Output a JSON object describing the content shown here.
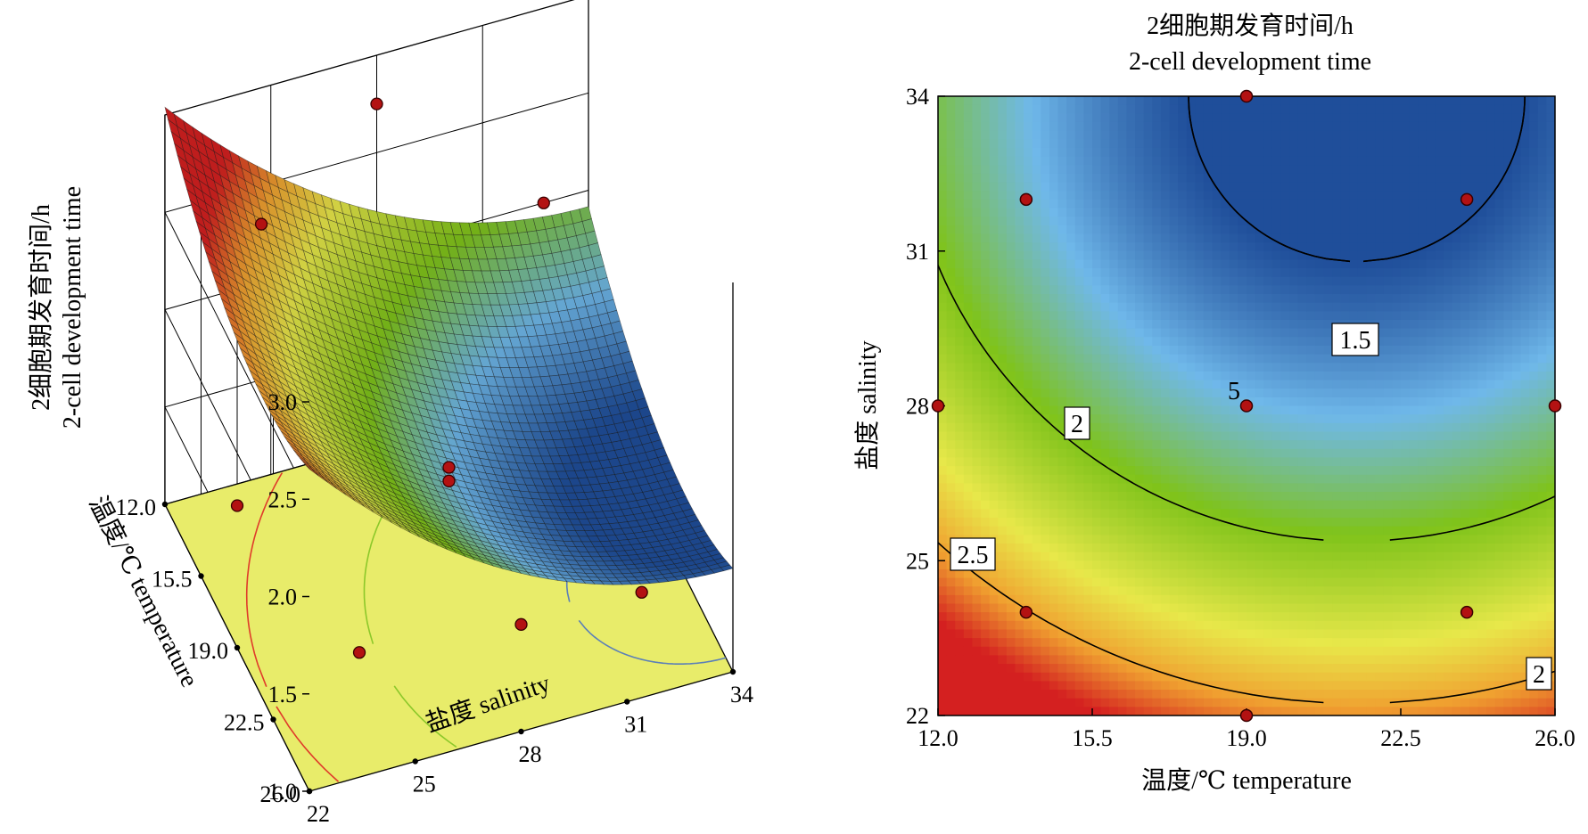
{
  "chart_data": [
    {
      "type": "surface3d",
      "zlabel_line1": "2细胞期发育时间/h",
      "zlabel_line2": "2-cell development time",
      "xlabel": "盐度 salinity",
      "ylabel": "温度/℃ temperature",
      "x_ticks": [
        "22",
        "25",
        "28",
        "31",
        "34"
      ],
      "y_ticks": [
        "12.0",
        "15.5",
        "19.0",
        "22.5",
        "26.0"
      ],
      "z_ticks": [
        "1.0",
        "1.5",
        "2.0",
        "2.5",
        "3.0"
      ],
      "x_range": [
        22,
        34
      ],
      "y_range": [
        12,
        26
      ],
      "z_range": [
        1.0,
        3.0
      ],
      "design_points": [
        {
          "salinity": 22,
          "temperature": 19,
          "value": 1.73,
          "above": true
        },
        {
          "salinity": 34,
          "temperature": 19,
          "value": 1.36,
          "above": false
        },
        {
          "salinity": 28,
          "temperature": 12,
          "value": 2.75,
          "above": true
        },
        {
          "salinity": 28,
          "temperature": 26,
          "value": 1.55,
          "above": true
        },
        {
          "salinity": 24,
          "temperature": 14.5,
          "value": 2.6,
          "above": true
        },
        {
          "salinity": 32,
          "temperature": 14.5,
          "value": 2.3,
          "above": true
        },
        {
          "salinity": 24,
          "temperature": 24,
          "value": 1.4,
          "above": true
        },
        {
          "salinity": 32,
          "temperature": 24,
          "value": 1.3,
          "above": true
        },
        {
          "salinity": 28,
          "temperature": 19,
          "value": 1.62,
          "above": true
        },
        {
          "salinity": 28,
          "temperature": 19,
          "value": 1.55,
          "above": true
        }
      ]
    },
    {
      "type": "contour",
      "title_line1": "2细胞期发育时间/h",
      "title_line2": "2-cell development time",
      "xlabel": "温度/℃ temperature",
      "ylabel": "盐度 salinity",
      "x_ticks": [
        "12.0",
        "15.5",
        "19.0",
        "22.5",
        "26.0"
      ],
      "y_ticks": [
        "22",
        "25",
        "28",
        "31",
        "34"
      ],
      "xlim": [
        12,
        26
      ],
      "ylim": [
        22,
        34
      ],
      "contour_levels": [
        1.5,
        2,
        2.5
      ],
      "contour_labels": [
        "1.5",
        "2",
        "2.5",
        "2"
      ],
      "design_points": [
        {
          "temperature": 19,
          "salinity": 34
        },
        {
          "temperature": 14,
          "salinity": 32
        },
        {
          "temperature": 24,
          "salinity": 32
        },
        {
          "temperature": 12,
          "salinity": 28
        },
        {
          "temperature": 19,
          "salinity": 28
        },
        {
          "temperature": 26,
          "salinity": 28
        },
        {
          "temperature": 14,
          "salinity": 24
        },
        {
          "temperature": 24,
          "salinity": 24
        },
        {
          "temperature": 19,
          "salinity": 22
        }
      ],
      "center_point_count": "5",
      "colors": {
        "low": "#1f4e9a",
        "mid_low": "#6fb8ea",
        "mid": "#7fc31a",
        "mid_high": "#e8e84a",
        "high": "#d42020",
        "floor": "#e8ec6a",
        "point": "#b31212"
      }
    }
  ]
}
